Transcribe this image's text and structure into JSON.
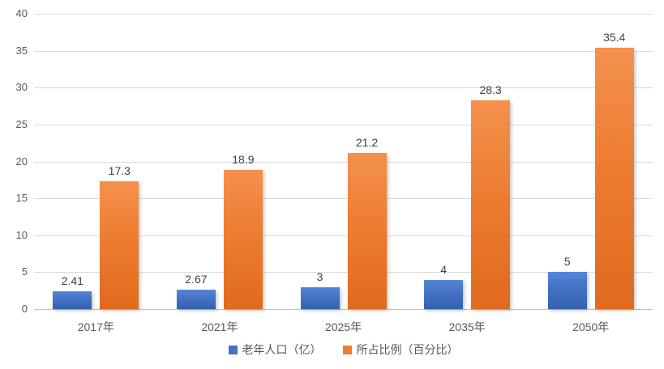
{
  "colors": {
    "series1": "#4472C4",
    "series2": "#ED7D31",
    "gridline": "#D9D9D9",
    "axis_text": "#595959",
    "data_label_text": "#404040",
    "background": "#FFFFFF"
  },
  "chart_data": {
    "type": "bar",
    "title": "",
    "xlabel": "",
    "ylabel": "",
    "categories": [
      "2017年",
      "2021年",
      "2025年",
      "2035年",
      "2050年"
    ],
    "series": [
      {
        "name": "老年人口（亿）",
        "color": "#4472C4",
        "values": [
          2.41,
          2.67,
          3,
          4,
          5
        ],
        "labels": [
          "2.41",
          "2.67",
          "3",
          "4",
          "5"
        ]
      },
      {
        "name": "所占比例（百分比）",
        "color": "#ED7D31",
        "values": [
          17.3,
          18.9,
          21.2,
          28.3,
          35.4
        ],
        "labels": [
          "17.3",
          "18.9",
          "21.2",
          "28.3",
          "35.4"
        ]
      }
    ],
    "ylim": [
      0,
      40
    ],
    "yticks": [
      0,
      5,
      10,
      15,
      20,
      25,
      30,
      35,
      40
    ],
    "grid": true,
    "data_labels": true,
    "legend_position": "bottom"
  }
}
